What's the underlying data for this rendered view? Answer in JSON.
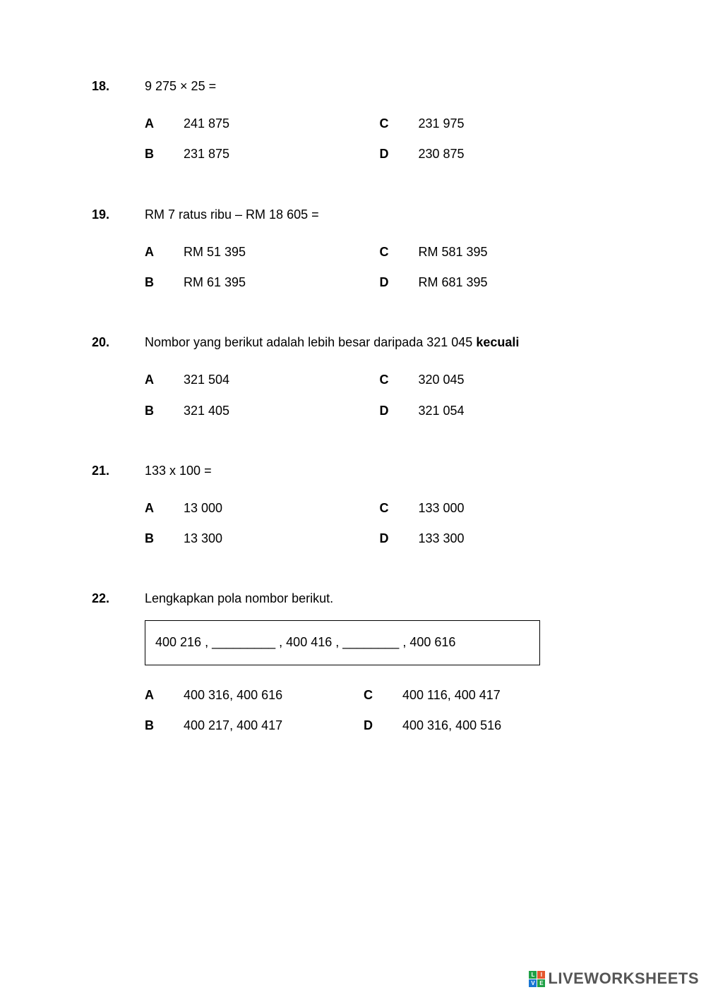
{
  "questions": [
    {
      "num": "18.",
      "text": "9 275  ×  25  =",
      "options": {
        "A": "241 875",
        "B": "231 875",
        "C": "231 975",
        "D": "230 875"
      }
    },
    {
      "num": "19.",
      "text": "RM 7 ratus ribu – RM 18 605 =",
      "options": {
        "A": "RM 51 395",
        "B": "RM 61 395",
        "C": "RM 581 395",
        "D": "RM 681 395"
      }
    },
    {
      "num": "20.",
      "text_pre": "Nombor yang berikut adalah lebih besar daripada 321 045 ",
      "text_bold": "kecuali",
      "options": {
        "A": "321 504",
        "B": "321 405",
        "C": "320 045",
        "D": "321 054"
      }
    },
    {
      "num": "21.",
      "text": "133 x 100 =",
      "options": {
        "A": "13 000",
        "B": "13 300",
        "C": "133 000",
        "D": "133 300"
      }
    },
    {
      "num": "22.",
      "text": "Lengkapkan pola nombor berikut.",
      "pattern": "400 216 , _________ , 400 416 , ________ , 400 616",
      "options": {
        "A": "400 316, 400 616",
        "B": "400 217, 400 417",
        "C": "400 116, 400 417",
        "D": "400 316, 400 516"
      }
    }
  ],
  "labels": {
    "A": "A",
    "B": "B",
    "C": "C",
    "D": "D"
  },
  "watermark": {
    "text": "LIVEWORKSHEETS",
    "blocks": [
      "L",
      "I",
      "V",
      "E"
    ],
    "block_colors": [
      "#1fa046",
      "#e4572e",
      "#1976d2",
      "#1fa046"
    ]
  }
}
